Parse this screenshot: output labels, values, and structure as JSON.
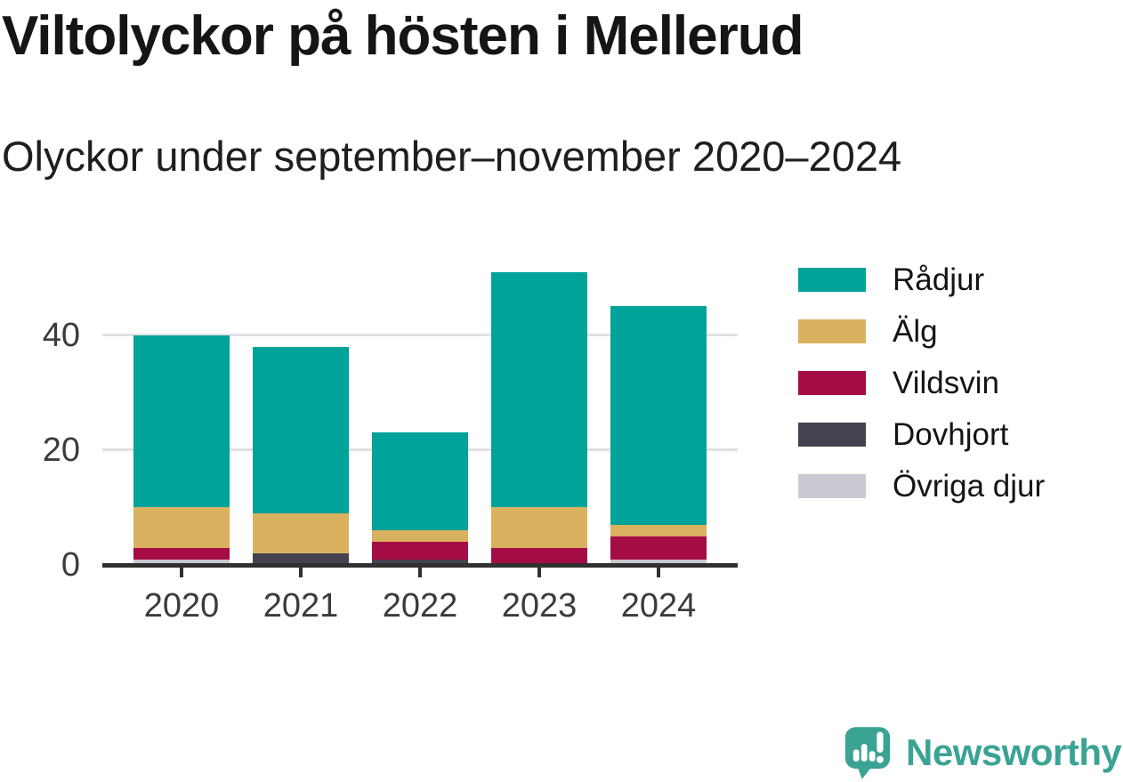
{
  "title": "Viltolyckor på hösten i Mellerud",
  "subtitle": "Olyckor under september–november 2020–2024",
  "chart_data": {
    "type": "bar",
    "stacked": true,
    "title": "Viltolyckor på hösten i Mellerud",
    "subtitle": "Olyckor under september–november 2020–2024",
    "categories": [
      "2020",
      "2021",
      "2022",
      "2023",
      "2024"
    ],
    "series": [
      {
        "name": "Rådjur",
        "color": "#00a39a",
        "values": [
          30,
          29,
          17,
          41,
          38
        ]
      },
      {
        "name": "Älg",
        "color": "#d9b15f",
        "values": [
          7,
          7,
          2,
          7,
          2
        ]
      },
      {
        "name": "Vildsvin",
        "color": "#a50b45",
        "values": [
          2,
          0,
          3,
          3,
          4
        ]
      },
      {
        "name": "Dovhjort",
        "color": "#44424e",
        "values": [
          0,
          2,
          1,
          0,
          0
        ]
      },
      {
        "name": "Övriga djur",
        "color": "#c9c9d2",
        "values": [
          1,
          0,
          0,
          0,
          1
        ]
      }
    ],
    "totals": [
      40,
      38,
      23,
      51,
      45
    ],
    "xlabel": "",
    "ylabel": "",
    "y_ticks": [
      0,
      20,
      40
    ],
    "ylim": [
      0,
      52
    ],
    "grid": "horizontal gridlines at 20 and 40",
    "legend_position": "right",
    "stack_order_bottom_to_top": [
      "Övriga djur",
      "Dovhjort",
      "Vildsvin",
      "Älg",
      "Rådjur"
    ]
  },
  "colors": {
    "gridline": "#e1e1e1",
    "axis": "#303030",
    "axis_text": "#3b3b3b",
    "brand": "#3ba394"
  },
  "branding": {
    "logo_text": "Newsworthy"
  }
}
